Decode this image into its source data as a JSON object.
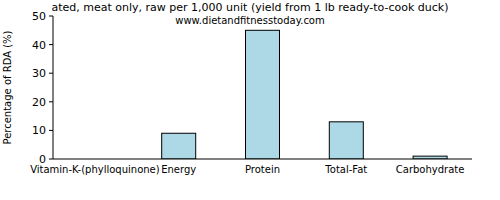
{
  "chart_data": {
    "type": "bar",
    "title": "ated, meat only, raw per 1,000 unit (yield from 1 lb ready-to-cook duck)",
    "subtitle": "www.dietandfitnesstoday.com",
    "y_label": "Percentage of RDA (%)",
    "categories": [
      "Vitamin-K-(phylloquinone)",
      "Energy",
      "Protein",
      "Total-Fat",
      "Carbohydrate"
    ],
    "values": [
      0,
      9,
      45,
      13,
      1
    ],
    "color": "#add8e6",
    "ylim": [
      0,
      50
    ],
    "yticks": [
      0,
      10,
      20,
      30,
      40,
      50
    ],
    "grid": false
  }
}
